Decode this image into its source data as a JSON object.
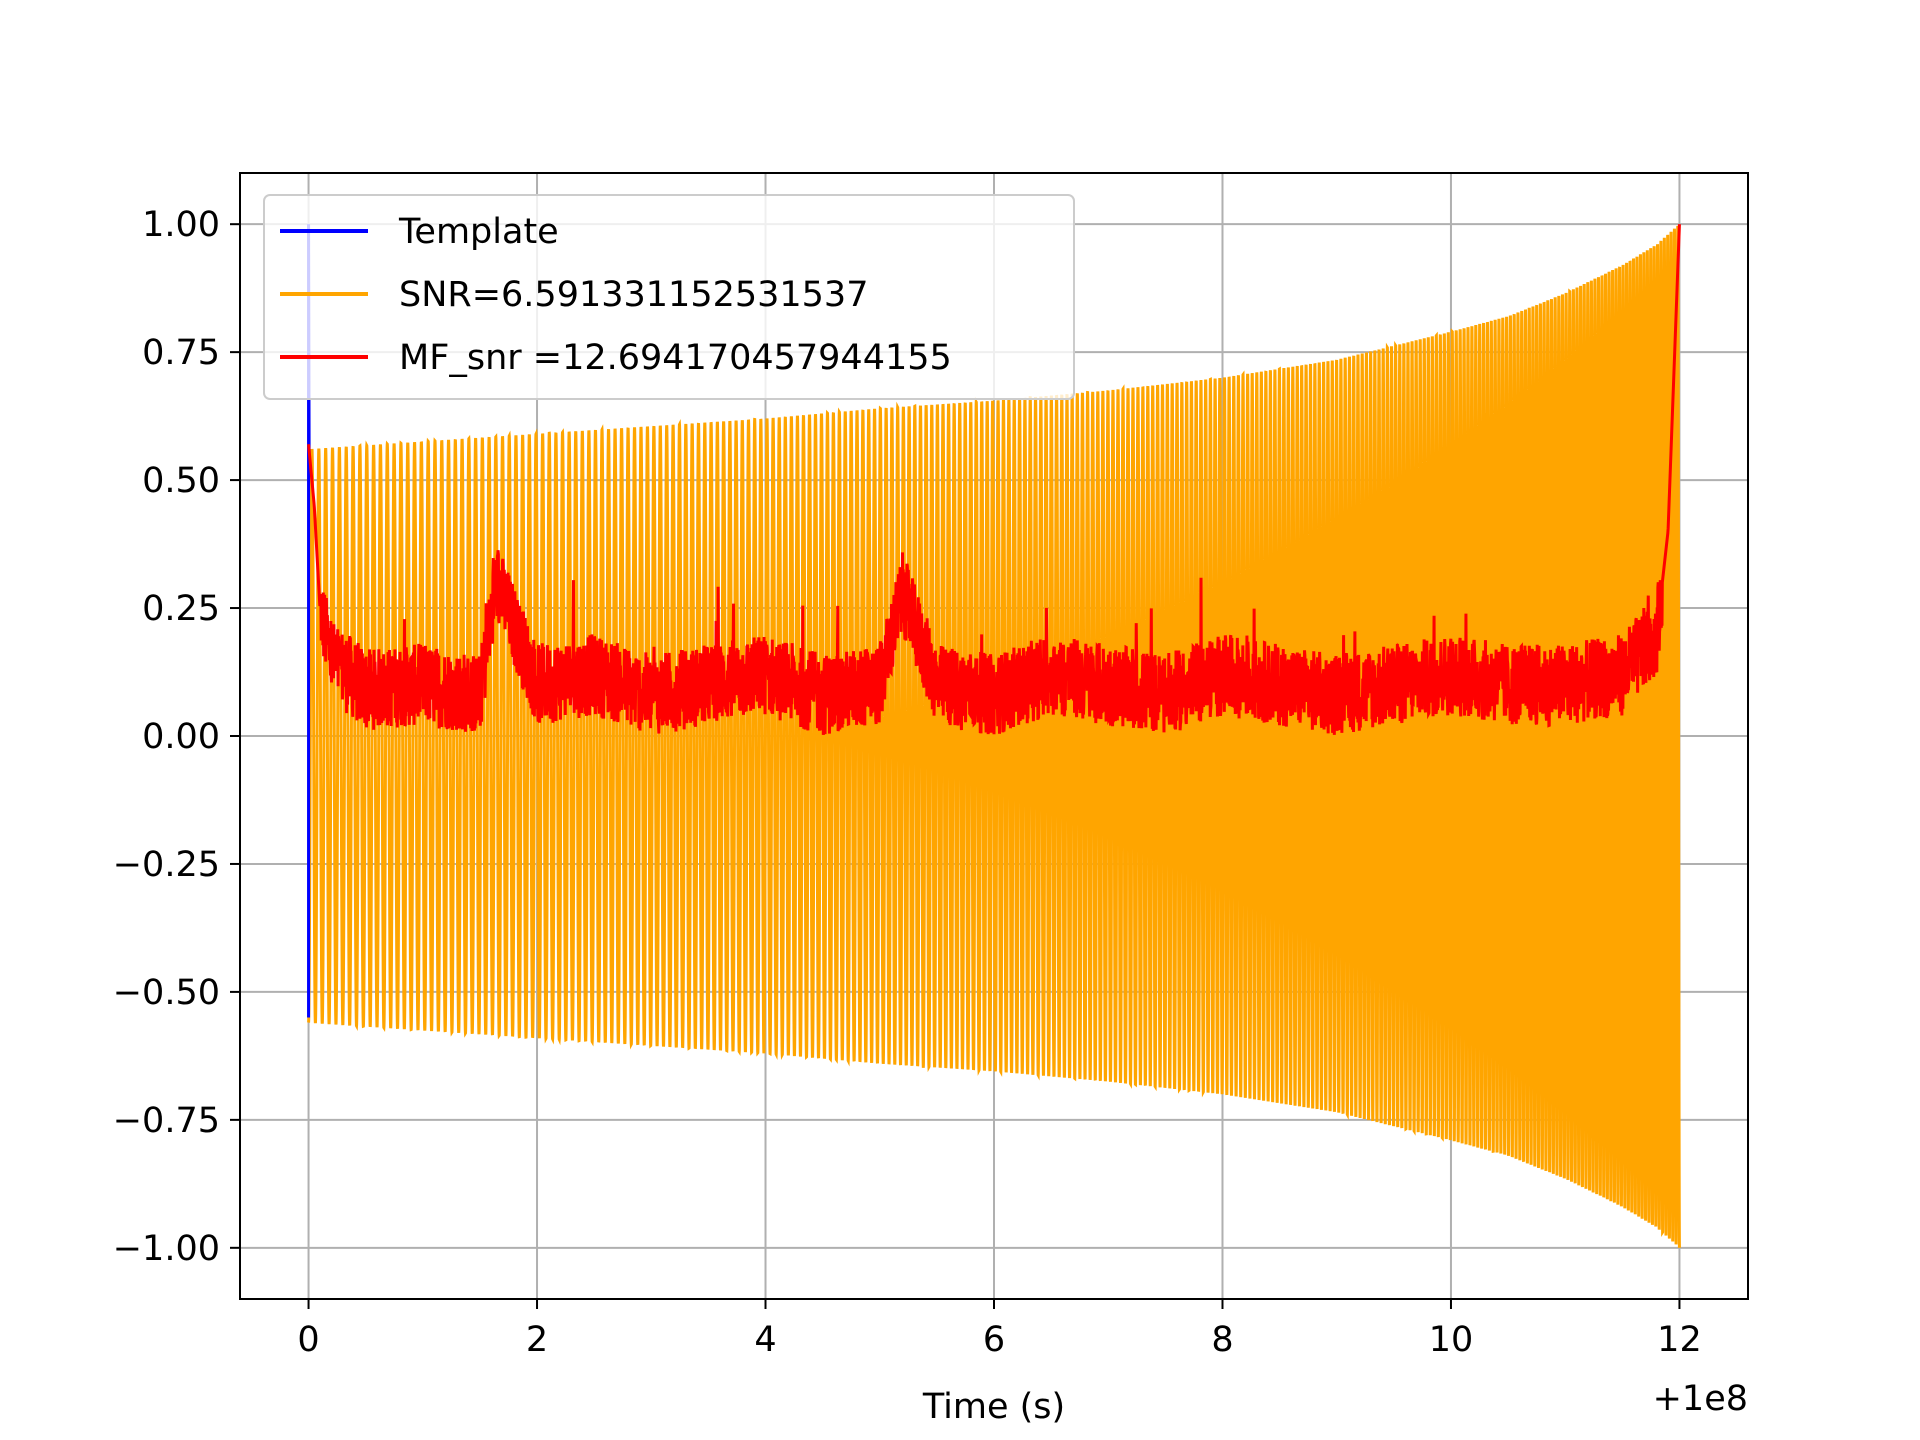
{
  "chart_data": {
    "type": "line",
    "title": "",
    "xlabel": "Time (s)",
    "ylabel": "",
    "x_offset_label": "+1e8",
    "xlim": [
      -0.6,
      12.6
    ],
    "ylim": [
      -1.1,
      1.1
    ],
    "grid": true,
    "legend_position": "upper-left",
    "x_ticks": [
      0,
      2,
      4,
      6,
      8,
      10,
      12
    ],
    "x_tick_labels": [
      "0",
      "2",
      "4",
      "6",
      "8",
      "10",
      "12"
    ],
    "y_ticks": [
      1.0,
      0.75,
      0.5,
      0.25,
      0.0,
      -0.25,
      -0.5,
      -0.75,
      -1.0
    ],
    "y_tick_labels": [
      "1.00",
      "0.75",
      "0.50",
      "0.25",
      "0.00",
      "−0.25",
      "−0.50",
      "−0.75",
      "−1.00"
    ],
    "series": [
      {
        "name": "Template",
        "color": "#0000ff",
        "kind": "chirp",
        "x": [
          0,
          0,
          0.005
        ],
        "y": [
          -0.55,
          1.0,
          0.55
        ]
      },
      {
        "name": "SNR=6.591331152531537",
        "color": "#ffa500",
        "kind": "chirp",
        "t_start": 0.0,
        "t_end": 12.0,
        "cycles": 200,
        "envelope_x": [
          0,
          1,
          2,
          3,
          4,
          5,
          6,
          7,
          8,
          9,
          10,
          10.5,
          11,
          11.5,
          11.8,
          12
        ],
        "envelope_y": [
          0.56,
          0.575,
          0.59,
          0.605,
          0.62,
          0.64,
          0.655,
          0.675,
          0.7,
          0.735,
          0.79,
          0.82,
          0.865,
          0.92,
          0.96,
          1.0
        ]
      },
      {
        "name": "MF_snr =12.694170457944155",
        "color": "#ff0000",
        "kind": "noisy-snr",
        "x": [
          0,
          0.05,
          0.1,
          0.2,
          0.5,
          1.0,
          1.5,
          1.65,
          2.0,
          2.5,
          3.0,
          3.5,
          4.0,
          4.5,
          5.0,
          5.2,
          5.5,
          6.0,
          6.5,
          7.0,
          7.5,
          8.0,
          8.5,
          9.0,
          9.5,
          10.0,
          10.5,
          11.0,
          11.5,
          11.8,
          11.9,
          12.0
        ],
        "y": [
          0.57,
          0.45,
          0.25,
          0.15,
          0.09,
          0.1,
          0.08,
          0.3,
          0.1,
          0.12,
          0.08,
          0.1,
          0.12,
          0.08,
          0.1,
          0.28,
          0.1,
          0.08,
          0.12,
          0.1,
          0.08,
          0.12,
          0.1,
          0.08,
          0.1,
          0.12,
          0.1,
          0.1,
          0.12,
          0.2,
          0.4,
          1.0
        ]
      }
    ]
  }
}
